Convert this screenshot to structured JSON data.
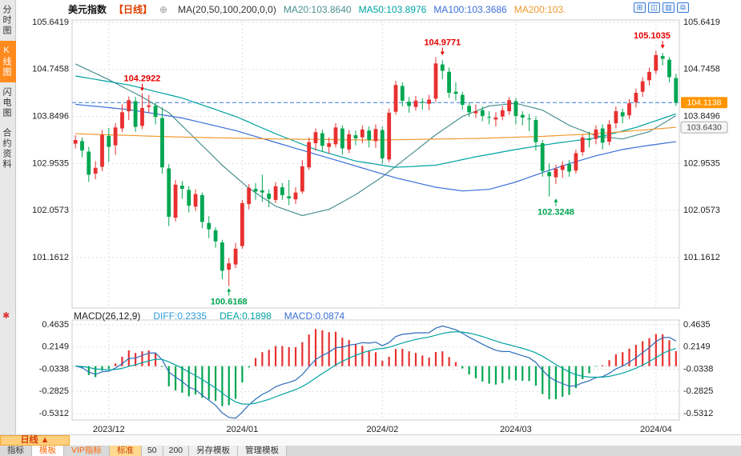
{
  "sidebar": {
    "items": [
      {
        "label": "分时图",
        "active": false
      },
      {
        "label": "K线图",
        "active": true
      },
      {
        "label": "闪电图",
        "active": false
      },
      {
        "label": "合约资料",
        "active": false
      }
    ],
    "gear_glyph": "✱"
  },
  "header": {
    "title": "美元指数",
    "period": "【日线】",
    "plus_icon": "⊕",
    "ma_summary": "MA(20,50,100,200,0,0)",
    "ma_items": [
      {
        "label": "MA20:103.8640",
        "color": "#4a9090"
      },
      {
        "label": "MA50:103.8976",
        "color": "#00a2a2"
      },
      {
        "label": "MA100:103.3686",
        "color": "#3a6fd8"
      },
      {
        "label": "MA200:103.",
        "color": "#f09a30"
      }
    ],
    "window_icons": [
      "⊞",
      "◫",
      "▥",
      "⧉"
    ]
  },
  "macd_header": {
    "label": "MACD(26,12,9)",
    "diff": "DIFF:0.2335",
    "dea": "DEA:0.1898",
    "macd": "MACD:0.0874",
    "diff_color": "#2b9cd8",
    "dea_color": "#00a2a2",
    "macd_color": "#3a6fd8"
  },
  "bottom": {
    "period_label": "日线",
    "period_arrow": "▲",
    "tabs": [
      {
        "label": "指标"
      },
      {
        "label": "模板"
      },
      {
        "label": "VIP指标"
      },
      {
        "label": "标准"
      },
      {
        "label": "50"
      },
      {
        "label": "200"
      },
      {
        "label": "另存模板"
      },
      {
        "label": "管理模板"
      }
    ]
  },
  "chart_data": {
    "type": "candlestick",
    "instrument": "美元指数",
    "period": "日线",
    "price_axis": {
      "labels": [
        "105.6419",
        "104.7458",
        "103.8496",
        "102.9535",
        "102.0573",
        "101.1612"
      ],
      "values": [
        105.6419,
        104.7458,
        103.8496,
        102.9535,
        102.0573,
        101.1612
      ],
      "range": [
        100.2,
        105.687
      ]
    },
    "x_axis": {
      "month_ticks": [
        {
          "index": 5,
          "label": "2023/12"
        },
        {
          "index": 25,
          "label": "2024/01"
        },
        {
          "index": 46,
          "label": "2024/02"
        },
        {
          "index": 66,
          "label": "2024/03"
        },
        {
          "index": 87,
          "label": "2024/04"
        }
      ]
    },
    "last_price": {
      "value": 104.1138,
      "label": "104.1138"
    },
    "ma200_label": {
      "value": 103.643,
      "label": "103.6430"
    },
    "colors": {
      "up": "#e83030",
      "down": "#00a651",
      "dashed_line": "#3a7bd5",
      "last_price_box": "#ff9500",
      "grid": "#dedede"
    },
    "annotations": [
      {
        "text": "104.2922",
        "index": 10,
        "price": 104.2922,
        "type": "high",
        "color": "#e60000"
      },
      {
        "text": "104.9771",
        "index": 55,
        "price": 104.9771,
        "type": "high",
        "color": "#e60000"
      },
      {
        "text": "105.1035",
        "index": 88,
        "price": 105.1035,
        "type": "high",
        "color": "#e60000"
      },
      {
        "text": "100.6168",
        "index": 23,
        "price": 100.6168,
        "type": "low",
        "color": "#00a651"
      },
      {
        "text": "102.3248",
        "index": 72,
        "price": 102.3248,
        "type": "low",
        "color": "#00a651"
      }
    ],
    "candles": [
      [
        "2023-11-24",
        103.33,
        103.49,
        103.24,
        103.4
      ],
      [
        "2023-11-27",
        103.38,
        103.45,
        103.07,
        103.2
      ],
      [
        "2023-11-28",
        103.18,
        103.27,
        102.6,
        102.74
      ],
      [
        "2023-11-29",
        102.76,
        103.0,
        102.65,
        102.87
      ],
      [
        "2023-11-30",
        102.89,
        103.59,
        102.81,
        103.5
      ],
      [
        "2023-12-01",
        103.48,
        103.63,
        102.98,
        103.27
      ],
      [
        "2023-12-04",
        103.3,
        103.72,
        103.12,
        103.64
      ],
      [
        "2023-12-05",
        103.62,
        104.08,
        103.55,
        103.93
      ],
      [
        "2023-12-06",
        103.95,
        104.23,
        103.78,
        104.16
      ],
      [
        "2023-12-07",
        104.14,
        104.22,
        103.56,
        103.65
      ],
      [
        "2023-12-08",
        103.67,
        104.2922,
        103.61,
        104.01
      ],
      [
        "2023-12-11",
        104.03,
        104.26,
        103.92,
        104.06
      ],
      [
        "2023-12-12",
        104.05,
        104.11,
        103.7,
        103.84
      ],
      [
        "2023-12-13",
        103.82,
        104.02,
        102.76,
        102.88
      ],
      [
        "2023-12-14",
        102.86,
        102.94,
        101.76,
        101.94
      ],
      [
        "2023-12-15",
        101.92,
        102.64,
        101.85,
        102.55
      ],
      [
        "2023-12-18",
        102.53,
        102.62,
        102.28,
        102.47
      ],
      [
        "2023-12-19",
        102.45,
        102.52,
        102.02,
        102.15
      ],
      [
        "2023-12-20",
        102.13,
        102.46,
        102.05,
        102.37
      ],
      [
        "2023-12-21",
        102.35,
        102.4,
        101.72,
        101.84
      ],
      [
        "2023-12-22",
        101.82,
        101.95,
        101.53,
        101.7
      ],
      [
        "2023-12-26",
        101.68,
        101.74,
        101.35,
        101.47
      ],
      [
        "2023-12-27",
        101.45,
        101.5,
        100.75,
        100.91
      ],
      [
        "2023-12-28",
        100.93,
        101.15,
        100.6168,
        101.05
      ],
      [
        "2023-12-29",
        101.03,
        101.44,
        100.96,
        101.33
      ],
      [
        "2024-01-02",
        101.38,
        102.26,
        101.33,
        102.2
      ],
      [
        "2024-01-03",
        102.18,
        102.56,
        102.08,
        102.49
      ],
      [
        "2024-01-04",
        102.47,
        102.58,
        102.26,
        102.42
      ],
      [
        "2024-01-05",
        102.44,
        102.74,
        102.22,
        102.4
      ],
      [
        "2024-01-08",
        102.38,
        102.46,
        102.12,
        102.28
      ],
      [
        "2024-01-09",
        102.26,
        102.6,
        102.2,
        102.52
      ],
      [
        "2024-01-10",
        102.5,
        102.58,
        102.26,
        102.35
      ],
      [
        "2024-01-11",
        102.33,
        102.64,
        102.16,
        102.29
      ],
      [
        "2024-01-12",
        102.27,
        102.5,
        102.18,
        102.4
      ],
      [
        "2024-01-16",
        102.42,
        103.02,
        102.38,
        102.9
      ],
      [
        "2024-01-17",
        102.88,
        103.45,
        102.83,
        103.36
      ],
      [
        "2024-01-18",
        103.34,
        103.62,
        103.2,
        103.55
      ],
      [
        "2024-01-19",
        103.53,
        103.6,
        103.17,
        103.29
      ],
      [
        "2024-01-22",
        103.27,
        103.45,
        103.14,
        103.34
      ],
      [
        "2024-01-23",
        103.32,
        103.72,
        103.26,
        103.64
      ],
      [
        "2024-01-24",
        103.62,
        103.68,
        103.12,
        103.24
      ],
      [
        "2024-01-25",
        103.22,
        103.59,
        103.15,
        103.51
      ],
      [
        "2024-01-26",
        103.49,
        103.58,
        103.3,
        103.43
      ],
      [
        "2024-01-29",
        103.45,
        103.68,
        103.34,
        103.6
      ],
      [
        "2024-01-30",
        103.58,
        103.66,
        103.26,
        103.4
      ],
      [
        "2024-01-31",
        103.38,
        103.7,
        103.25,
        103.61
      ],
      [
        "2024-02-01",
        103.59,
        103.66,
        102.95,
        103.05
      ],
      [
        "2024-02-02",
        103.03,
        104.0,
        102.98,
        103.92
      ],
      [
        "2024-02-05",
        103.94,
        104.53,
        103.88,
        104.45
      ],
      [
        "2024-02-06",
        104.43,
        104.5,
        104.04,
        104.15
      ],
      [
        "2024-02-07",
        104.13,
        104.22,
        103.92,
        104.05
      ],
      [
        "2024-02-08",
        104.03,
        104.24,
        103.96,
        104.15
      ],
      [
        "2024-02-09",
        104.13,
        104.2,
        103.98,
        104.11
      ],
      [
        "2024-02-12",
        104.09,
        104.26,
        103.97,
        104.17
      ],
      [
        "2024-02-13",
        104.19,
        104.9771,
        104.12,
        104.86
      ],
      [
        "2024-02-14",
        104.84,
        104.92,
        104.56,
        104.72
      ],
      [
        "2024-02-15",
        104.7,
        104.78,
        104.2,
        104.3
      ],
      [
        "2024-02-16",
        104.32,
        104.5,
        104.15,
        104.28
      ],
      [
        "2024-02-20",
        104.26,
        104.32,
        103.98,
        104.07
      ],
      [
        "2024-02-21",
        104.05,
        104.12,
        103.84,
        103.93
      ],
      [
        "2024-02-22",
        103.91,
        104.08,
        103.82,
        103.95
      ],
      [
        "2024-02-23",
        103.97,
        104.04,
        103.76,
        103.86
      ],
      [
        "2024-02-26",
        103.84,
        103.95,
        103.7,
        103.83
      ],
      [
        "2024-02-27",
        103.79,
        103.93,
        103.66,
        103.83
      ],
      [
        "2024-02-28",
        103.85,
        104.05,
        103.78,
        103.97
      ],
      [
        "2024-02-29",
        103.95,
        104.22,
        103.88,
        104.16
      ],
      [
        "2024-03-01",
        104.14,
        104.2,
        103.7,
        103.86
      ],
      [
        "2024-03-04",
        103.88,
        103.95,
        103.68,
        103.83
      ],
      [
        "2024-03-05",
        103.81,
        103.9,
        103.57,
        103.8
      ],
      [
        "2024-03-06",
        103.78,
        103.85,
        103.2,
        103.36
      ],
      [
        "2024-03-07",
        103.34,
        103.4,
        102.7,
        102.81
      ],
      [
        "2024-03-08",
        102.79,
        102.96,
        102.3248,
        102.71
      ],
      [
        "2024-03-11",
        102.69,
        102.93,
        102.56,
        102.85
      ],
      [
        "2024-03-12",
        102.83,
        103.0,
        102.68,
        102.92
      ],
      [
        "2024-03-13",
        102.94,
        103.02,
        102.7,
        102.8
      ],
      [
        "2024-03-14",
        102.82,
        103.22,
        102.76,
        103.15
      ],
      [
        "2024-03-15",
        103.17,
        103.5,
        103.1,
        103.45
      ],
      [
        "2024-03-18",
        103.43,
        103.56,
        103.26,
        103.4
      ],
      [
        "2024-03-19",
        103.42,
        103.68,
        103.32,
        103.6
      ],
      [
        "2024-03-20",
        103.62,
        103.7,
        103.22,
        103.35
      ],
      [
        "2024-03-21",
        103.37,
        103.78,
        103.3,
        103.7
      ],
      [
        "2024-03-22",
        103.72,
        104.04,
        103.62,
        103.95
      ],
      [
        "2024-03-25",
        103.93,
        104.0,
        103.72,
        103.85
      ],
      [
        "2024-03-26",
        103.87,
        104.18,
        103.8,
        104.1
      ],
      [
        "2024-03-27",
        104.12,
        104.38,
        104.02,
        104.3
      ],
      [
        "2024-03-28",
        104.32,
        104.6,
        104.22,
        104.52
      ],
      [
        "2024-03-29",
        104.54,
        104.78,
        104.44,
        104.7
      ],
      [
        "2024-04-01",
        104.72,
        105.1035,
        104.65,
        105.02
      ],
      [
        "2024-04-02",
        105.0,
        105.06,
        104.82,
        104.95
      ],
      [
        "2024-04-03",
        104.93,
        104.98,
        104.5,
        104.6
      ],
      [
        "2024-04-04",
        104.58,
        104.66,
        104.05,
        104.1138
      ]
    ],
    "ma_lines": [
      {
        "name": "MA20",
        "color": "#4a9090",
        "points": [
          [
            0,
            104.85
          ],
          [
            5,
            104.55
          ],
          [
            10,
            104.22
          ],
          [
            14,
            103.92
          ],
          [
            18,
            103.42
          ],
          [
            22,
            102.92
          ],
          [
            26,
            102.48
          ],
          [
            30,
            102.14
          ],
          [
            34,
            101.96
          ],
          [
            38,
            102.08
          ],
          [
            42,
            102.36
          ],
          [
            46,
            102.7
          ],
          [
            50,
            103.1
          ],
          [
            54,
            103.5
          ],
          [
            58,
            103.85
          ],
          [
            62,
            104.05
          ],
          [
            66,
            104.1
          ],
          [
            70,
            103.97
          ],
          [
            74,
            103.68
          ],
          [
            78,
            103.48
          ],
          [
            82,
            103.42
          ],
          [
            86,
            103.56
          ],
          [
            90,
            103.864
          ]
        ]
      },
      {
        "name": "MA50",
        "color": "#00a2a2",
        "points": [
          [
            0,
            104.62
          ],
          [
            8,
            104.45
          ],
          [
            16,
            104.2
          ],
          [
            24,
            103.85
          ],
          [
            30,
            103.52
          ],
          [
            36,
            103.22
          ],
          [
            42,
            103.0
          ],
          [
            48,
            102.88
          ],
          [
            54,
            102.92
          ],
          [
            60,
            103.08
          ],
          [
            66,
            103.22
          ],
          [
            72,
            103.34
          ],
          [
            78,
            103.44
          ],
          [
            84,
            103.64
          ],
          [
            90,
            103.8976
          ]
        ]
      },
      {
        "name": "MA100",
        "color": "#3a6fd8",
        "points": [
          [
            0,
            104.08
          ],
          [
            8,
            103.98
          ],
          [
            16,
            103.82
          ],
          [
            24,
            103.58
          ],
          [
            32,
            103.28
          ],
          [
            40,
            102.98
          ],
          [
            48,
            102.68
          ],
          [
            54,
            102.5
          ],
          [
            58,
            102.43
          ],
          [
            62,
            102.46
          ],
          [
            66,
            102.6
          ],
          [
            70,
            102.78
          ],
          [
            74,
            102.95
          ],
          [
            78,
            103.1
          ],
          [
            82,
            103.22
          ],
          [
            86,
            103.3
          ],
          [
            90,
            103.3686
          ]
        ]
      },
      {
        "name": "MA200",
        "color": "#f09a30",
        "points": [
          [
            0,
            103.52
          ],
          [
            15,
            103.46
          ],
          [
            30,
            103.42
          ],
          [
            45,
            103.4
          ],
          [
            60,
            103.43
          ],
          [
            70,
            103.47
          ],
          [
            78,
            103.52
          ],
          [
            84,
            103.58
          ],
          [
            90,
            103.643
          ]
        ]
      }
    ],
    "macd": {
      "params": [
        26,
        12,
        9
      ],
      "axis_labels": [
        "0.4635",
        "0.2149",
        "-0.0338",
        "-0.2825",
        "-0.5312"
      ],
      "axis_values": [
        0.4635,
        0.2149,
        -0.0338,
        -0.2825,
        -0.5312
      ],
      "range": [
        -0.603,
        0.517
      ],
      "diff": 0.2335,
      "dea": 0.1898,
      "macd": 0.0874,
      "colors": {
        "diff": "#2b6cb8",
        "dea": "#00a2a2",
        "bar_up": "#e83030",
        "bar_down": "#00a651"
      }
    }
  }
}
